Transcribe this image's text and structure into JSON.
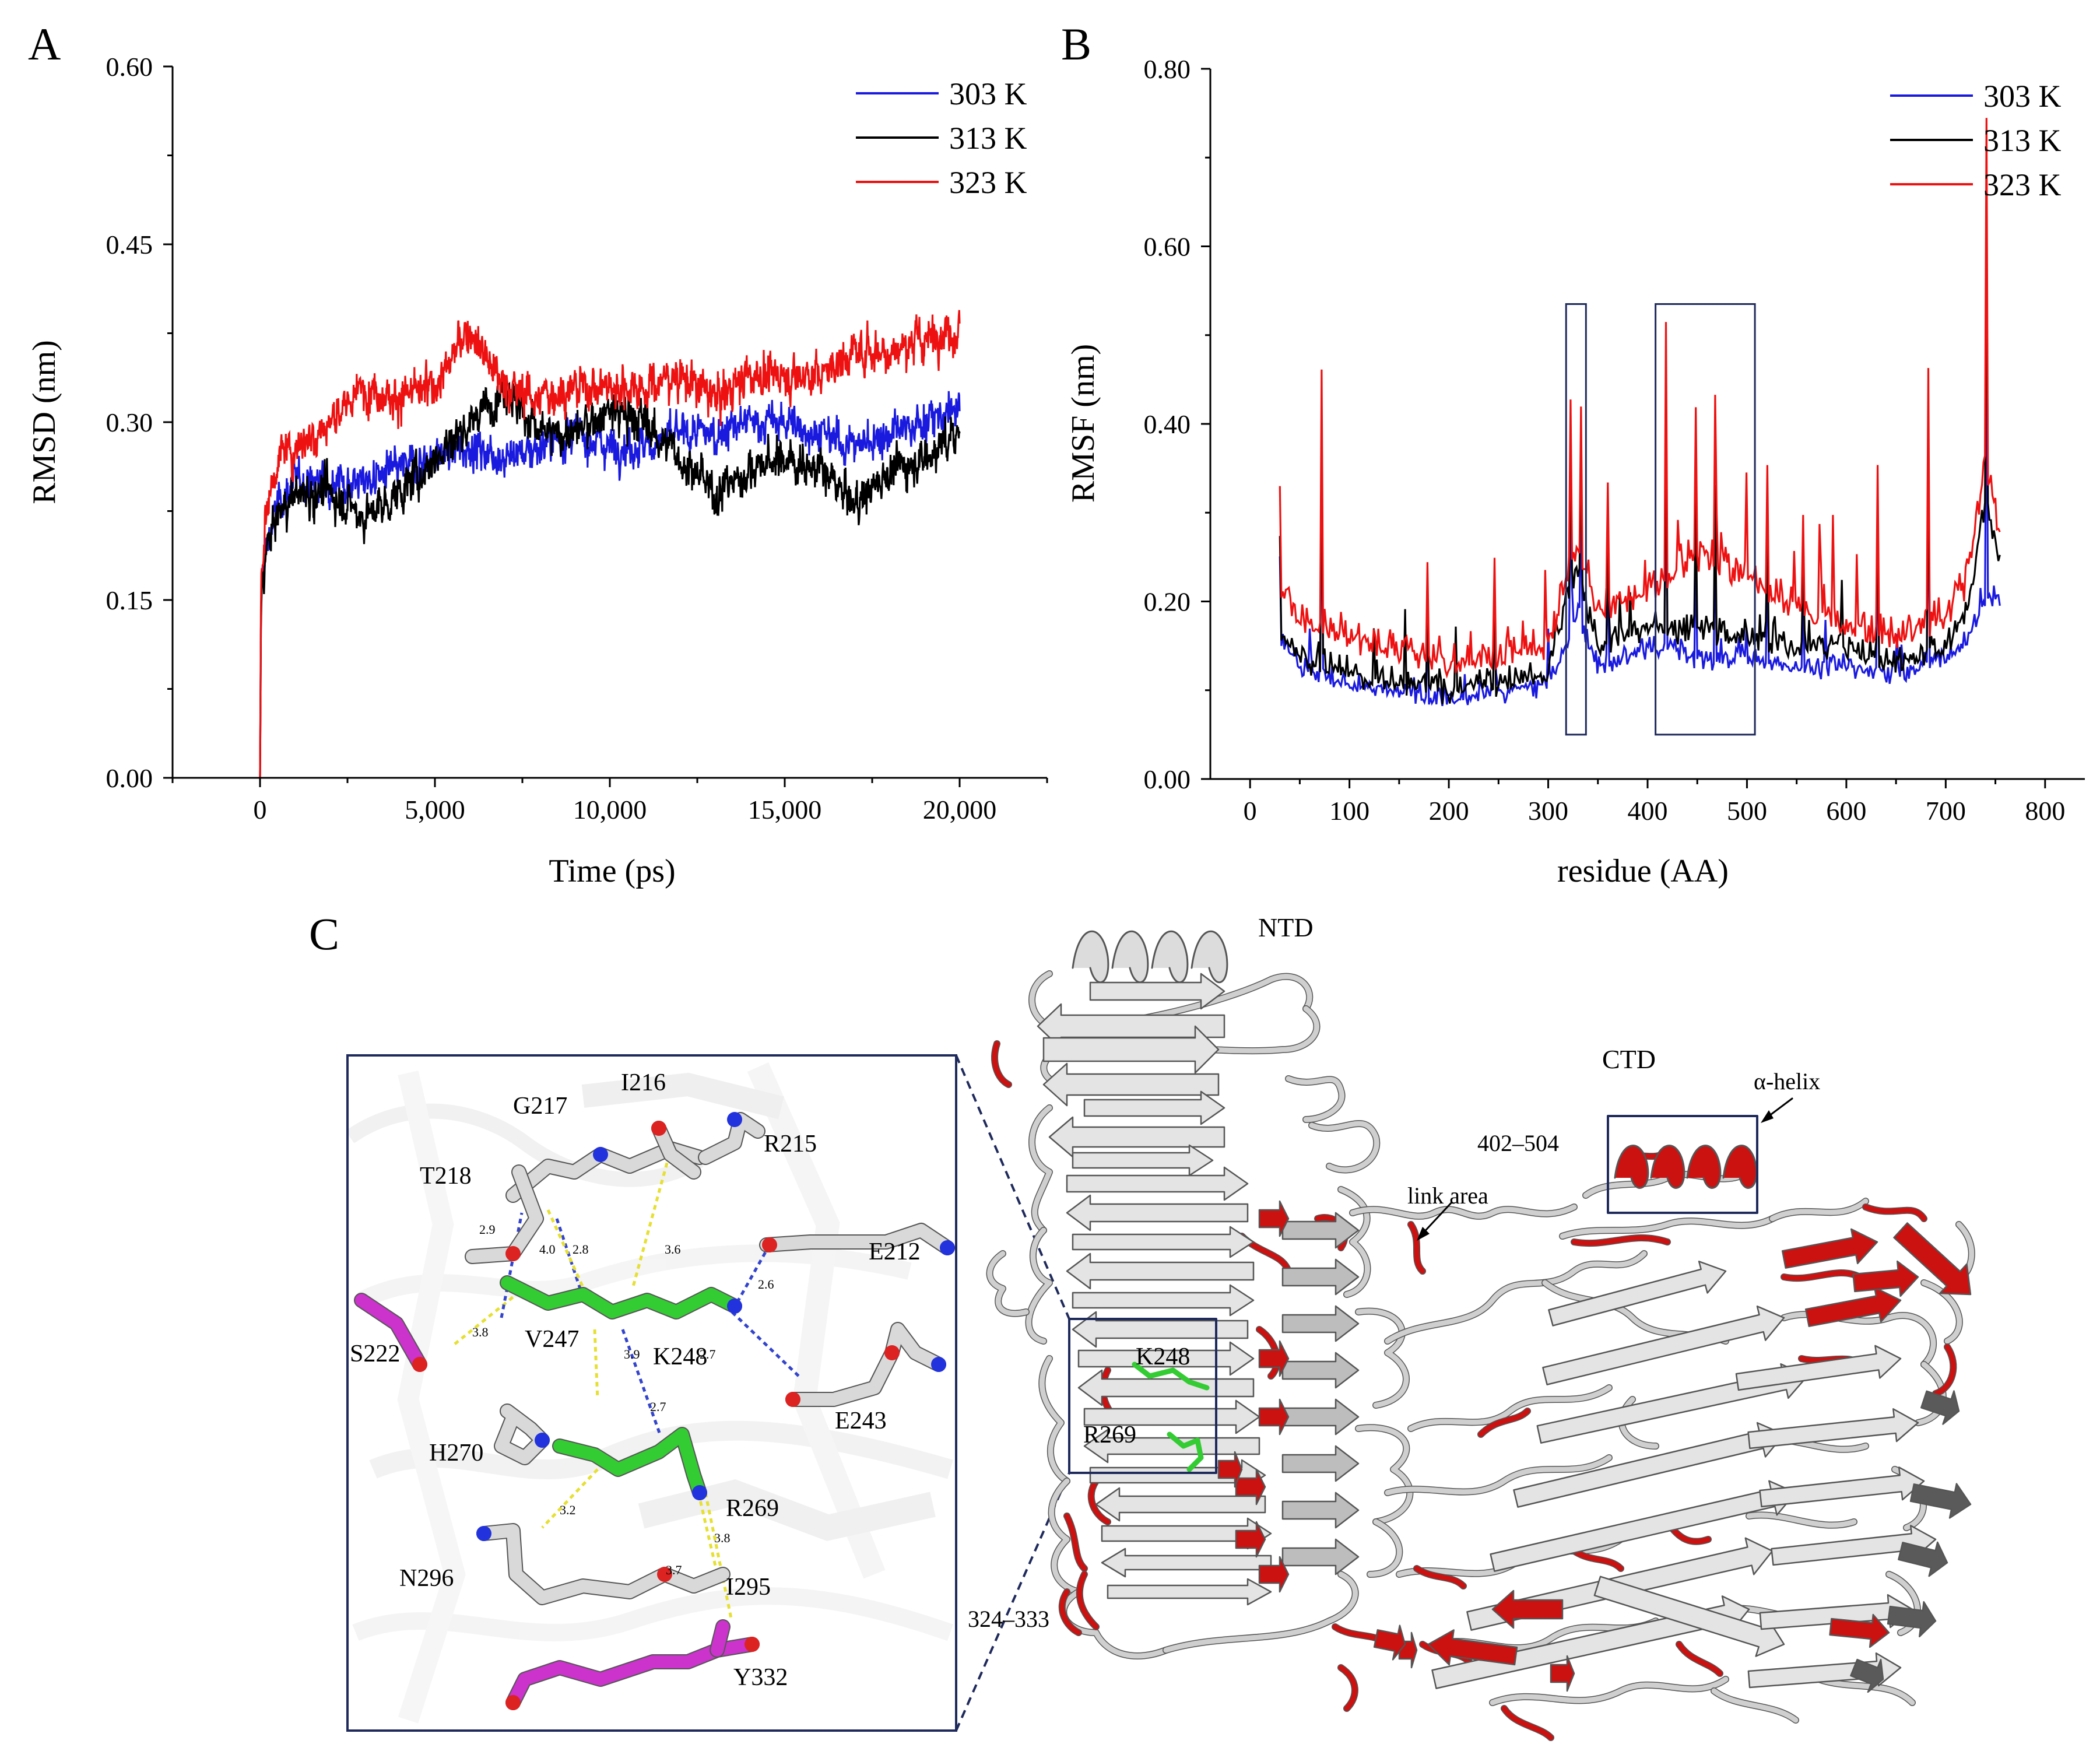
{
  "panel_labels": {
    "a": "A",
    "b": "B",
    "c": "C"
  },
  "chart_data": [
    {
      "type": "line",
      "title": "",
      "xlabel": "Time (ps)",
      "ylabel": "RMSD (nm)",
      "xlim": [
        -2500,
        22500
      ],
      "ylim": [
        0,
        0.6
      ],
      "xticks": [
        0,
        5000,
        10000,
        15000,
        20000
      ],
      "xtick_labels": [
        "0",
        "5,000",
        "10,000",
        "15,000",
        "20,000"
      ],
      "yticks": [
        0,
        0.15,
        0.3,
        0.45,
        0.6
      ],
      "ytick_labels": [
        "0.00",
        "0.15",
        "0.30",
        "0.45",
        "0.60"
      ],
      "legend_position": "top-right",
      "series": [
        {
          "name": "303 K",
          "color": "#1a1adf",
          "x": [
            0,
            30,
            150,
            500,
            1000,
            2000,
            3000,
            4000,
            5000,
            6000,
            7000,
            8000,
            9000,
            10000,
            11000,
            12000,
            13000,
            14000,
            15000,
            16000,
            17000,
            18000,
            19000,
            20000
          ],
          "y": [
            0,
            0.15,
            0.19,
            0.23,
            0.25,
            0.25,
            0.25,
            0.26,
            0.27,
            0.28,
            0.27,
            0.28,
            0.29,
            0.28,
            0.28,
            0.29,
            0.29,
            0.3,
            0.3,
            0.29,
            0.28,
            0.29,
            0.3,
            0.31
          ]
        },
        {
          "name": "313 K",
          "color": "#000000",
          "x": [
            0,
            30,
            150,
            500,
            1000,
            2000,
            3000,
            4000,
            5000,
            6000,
            7000,
            8000,
            9000,
            10000,
            11000,
            12000,
            13000,
            14000,
            15000,
            16000,
            17000,
            18000,
            19000,
            20000
          ],
          "y": [
            0,
            0.15,
            0.19,
            0.22,
            0.24,
            0.24,
            0.22,
            0.24,
            0.27,
            0.3,
            0.33,
            0.29,
            0.29,
            0.31,
            0.3,
            0.27,
            0.24,
            0.26,
            0.27,
            0.26,
            0.23,
            0.26,
            0.27,
            0.29
          ]
        },
        {
          "name": "323 K",
          "color": "#ee1111",
          "x": [
            0,
            30,
            150,
            500,
            1000,
            2000,
            3000,
            4000,
            5000,
            6000,
            7000,
            8000,
            9000,
            10000,
            11000,
            12000,
            13000,
            14000,
            15000,
            16000,
            17000,
            18000,
            19000,
            20000
          ],
          "y": [
            0,
            0.17,
            0.22,
            0.27,
            0.28,
            0.3,
            0.33,
            0.32,
            0.33,
            0.38,
            0.33,
            0.32,
            0.33,
            0.33,
            0.33,
            0.34,
            0.32,
            0.34,
            0.34,
            0.34,
            0.36,
            0.36,
            0.37,
            0.38
          ]
        }
      ]
    },
    {
      "type": "line",
      "title": "",
      "xlabel": "residue (AA)",
      "ylabel": "RMSF (nm)",
      "xlim": [
        -40,
        840
      ],
      "ylim": [
        0,
        0.8
      ],
      "xticks": [
        0,
        100,
        200,
        300,
        400,
        500,
        600,
        700,
        800
      ],
      "xtick_labels": [
        "0",
        "100",
        "200",
        "300",
        "400",
        "500",
        "600",
        "700",
        "800"
      ],
      "yticks": [
        0,
        0.2,
        0.4,
        0.6,
        0.8
      ],
      "ytick_labels": [
        "0.00",
        "0.20",
        "0.40",
        "0.60",
        "0.80"
      ],
      "legend_position": "top-right",
      "highlight_boxes": [
        {
          "x_range": [
            318,
            338
          ],
          "y_range": [
            0.05,
            0.535
          ]
        },
        {
          "x_range": [
            408,
            508
          ],
          "y_range": [
            0.05,
            0.535
          ]
        }
      ],
      "series": [
        {
          "name": "303 K",
          "color": "#1a1adf",
          "x": [
            30,
            50,
            100,
            150,
            200,
            250,
            300,
            320,
            330,
            350,
            400,
            450,
            500,
            550,
            600,
            650,
            700,
            720,
            740,
            755
          ],
          "y": [
            0.15,
            0.12,
            0.1,
            0.09,
            0.08,
            0.09,
            0.1,
            0.15,
            0.18,
            0.12,
            0.14,
            0.13,
            0.13,
            0.12,
            0.12,
            0.11,
            0.13,
            0.15,
            0.2,
            0.19
          ]
        },
        {
          "name": "313 K",
          "color": "#000000",
          "x": [
            30,
            50,
            100,
            150,
            200,
            250,
            300,
            320,
            330,
            350,
            400,
            450,
            500,
            550,
            600,
            650,
            700,
            720,
            740,
            755
          ],
          "y": [
            0.16,
            0.13,
            0.11,
            0.1,
            0.09,
            0.1,
            0.11,
            0.2,
            0.22,
            0.14,
            0.16,
            0.16,
            0.15,
            0.14,
            0.14,
            0.12,
            0.14,
            0.17,
            0.3,
            0.24
          ]
        },
        {
          "name": "323 K",
          "color": "#ee1111",
          "x": [
            30,
            50,
            100,
            150,
            200,
            250,
            300,
            320,
            330,
            350,
            400,
            450,
            500,
            550,
            600,
            650,
            700,
            720,
            740,
            755
          ],
          "y": [
            0.2,
            0.17,
            0.15,
            0.13,
            0.12,
            0.13,
            0.14,
            0.22,
            0.25,
            0.18,
            0.2,
            0.24,
            0.22,
            0.18,
            0.16,
            0.15,
            0.17,
            0.2,
            0.35,
            0.27
          ]
        }
      ]
    }
  ],
  "structure": {
    "inset": {
      "residues": [
        "G217",
        "I216",
        "R215",
        "T218",
        "E212",
        "S222",
        "V247",
        "K248",
        "E243",
        "H270",
        "R269",
        "N296",
        "I295",
        "Y332"
      ],
      "distances": [
        "2.9",
        "4.0",
        "2.8",
        "3.6",
        "2.6",
        "3.8",
        "3.9",
        "2.7",
        "2.7",
        "3.2",
        "3.8",
        "3.7"
      ]
    },
    "labels": {
      "ntd": "NTD",
      "ctd": "CTD",
      "helix": "α-helix",
      "range_ctd": "402–504",
      "link": "link area",
      "k248": "K248",
      "r269": "R269",
      "range_ntd": "324–333"
    },
    "colors": {
      "highlight": "#cc1111",
      "ribbon": "#c8c8c8",
      "ligand_green": "#33cc33",
      "magenta": "#cc33cc",
      "nitrogen": "#2233dd",
      "oxygen": "#dd2222",
      "box": "#1f2a5c"
    }
  }
}
